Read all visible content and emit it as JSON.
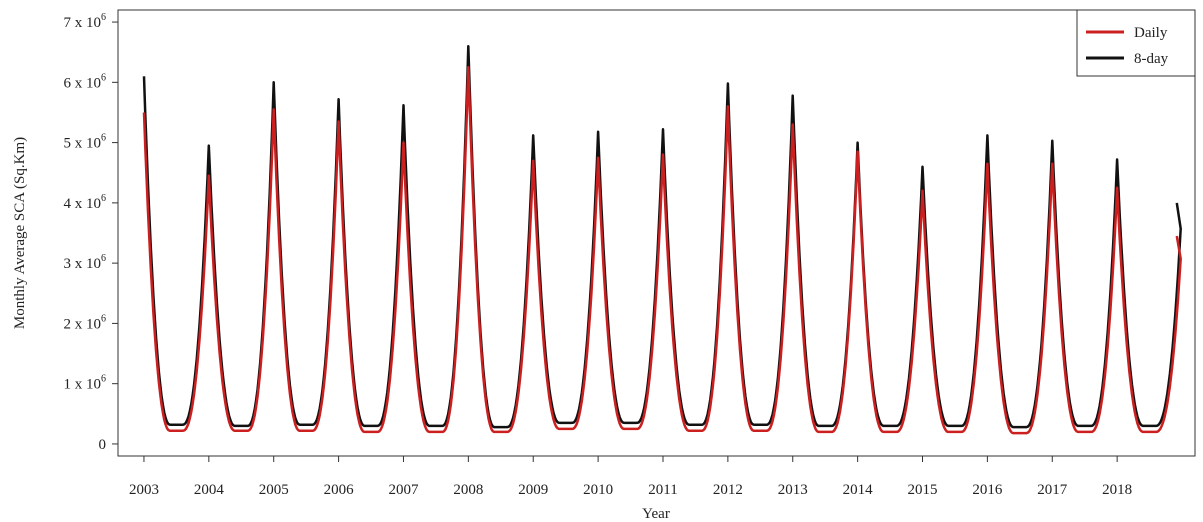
{
  "chart_data": {
    "type": "line",
    "xlabel": "Year",
    "ylabel": "Monthly Average SCA (Sq.Km)",
    "xlim": [
      2002.6,
      2019.2
    ],
    "ylim": [
      -0.2,
      7.2
    ],
    "y_multiplier": 1000000,
    "x_ticks": [
      "2003",
      "2004",
      "2005",
      "2006",
      "2007",
      "2008",
      "2009",
      "2010",
      "2011",
      "2012",
      "2013",
      "2014",
      "2015",
      "2016",
      "2017",
      "2018"
    ],
    "y_ticks": [
      {
        "value": 0,
        "base": "0",
        "exp": ""
      },
      {
        "value": 1,
        "base": "1 x 10",
        "exp": "6"
      },
      {
        "value": 2,
        "base": "2 x 10",
        "exp": "6"
      },
      {
        "value": 3,
        "base": "3 x 10",
        "exp": "6"
      },
      {
        "value": 4,
        "base": "4 x 10",
        "exp": "6"
      },
      {
        "value": 5,
        "base": "5 x 10",
        "exp": "6"
      },
      {
        "value": 6,
        "base": "6 x 10",
        "exp": "6"
      },
      {
        "value": 7,
        "base": "7 x 10",
        "exp": "6"
      }
    ],
    "legend": {
      "position": "top-right"
    },
    "grid": false,
    "series": [
      {
        "name": "Daily",
        "color": "#cc1f1f",
        "peaks": [
          5.5,
          4.45,
          5.55,
          5.35,
          5.0,
          6.25,
          4.7,
          4.75,
          4.8,
          5.6,
          5.3,
          4.85,
          4.2,
          4.65,
          4.65,
          4.25
        ],
        "troughs": [
          0.22,
          0.22,
          0.22,
          0.2,
          0.2,
          0.2,
          0.25,
          0.25,
          0.22,
          0.22,
          0.2,
          0.2,
          0.2,
          0.18,
          0.2,
          0.2
        ],
        "end_value": 3.45
      },
      {
        "name": "8-day",
        "color": "#111111",
        "peaks": [
          6.1,
          4.95,
          6.0,
          5.72,
          5.62,
          6.6,
          5.12,
          5.18,
          5.22,
          5.98,
          5.78,
          5.0,
          4.6,
          5.12,
          5.03,
          4.72
        ],
        "troughs": [
          0.32,
          0.3,
          0.32,
          0.3,
          0.3,
          0.28,
          0.35,
          0.35,
          0.32,
          0.32,
          0.3,
          0.3,
          0.3,
          0.28,
          0.3,
          0.3
        ],
        "end_value": 4.0
      }
    ]
  }
}
